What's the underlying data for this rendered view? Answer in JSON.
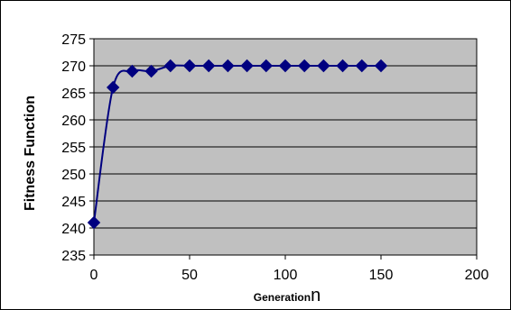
{
  "chart_data": {
    "type": "line",
    "title": "",
    "xlabel": "Generation",
    "xlabel_last_char": "n",
    "ylabel": "Fitness Function",
    "xlim": [
      0,
      200
    ],
    "ylim": [
      235,
      275
    ],
    "x_ticks": [
      "0",
      "50",
      "100",
      "150",
      "200"
    ],
    "y_ticks": [
      "235",
      "240",
      "245",
      "250",
      "255",
      "260",
      "265",
      "270",
      "275"
    ],
    "x_tick_values": [
      0,
      50,
      100,
      150,
      200
    ],
    "y_tick_values": [
      235,
      240,
      245,
      250,
      255,
      260,
      265,
      270,
      275
    ],
    "grid": "horizontal",
    "legend": "none",
    "series": [
      {
        "x": [
          0,
          10,
          20,
          30,
          40,
          50,
          60,
          70,
          80,
          90,
          100,
          110,
          120,
          130,
          140,
          150
        ],
        "y": [
          241,
          266,
          269,
          269,
          270,
          270,
          270,
          270,
          270,
          270,
          270,
          270,
          270,
          270,
          270,
          270
        ]
      }
    ],
    "colors": {
      "plot_background": "#c0c0c0",
      "series": "#000080",
      "grid": "#000000",
      "frame": "#000000"
    }
  }
}
